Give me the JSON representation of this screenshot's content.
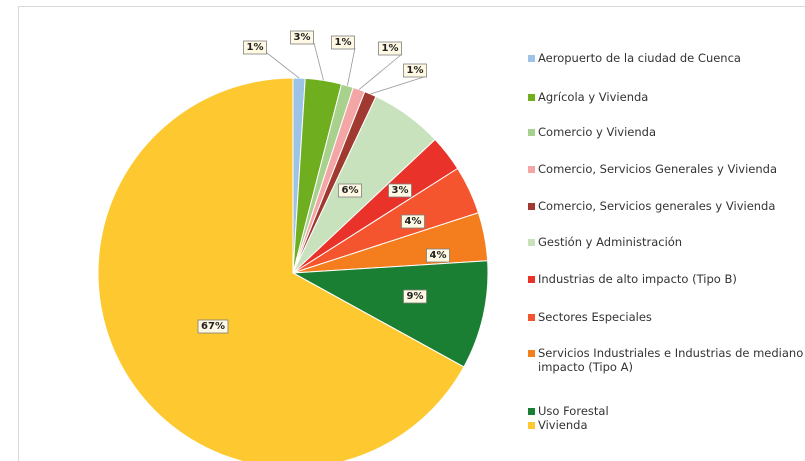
{
  "chart_data": {
    "type": "pie",
    "categories": [
      "Aeropuerto de la ciudad de Cuenca",
      "Agrícola y Vivienda",
      "Comercio y Vivienda",
      "Comercio, Servicios Generales y Vivienda",
      "Comercio, Servicios generales y Vivienda",
      "Gestión y Administración",
      "Industrias de alto impacto (Tipo B)",
      "Sectores Especiales",
      "Servicios Industriales e Industrias de mediano impacto (Tipo A)",
      "Uso Forestal",
      "Vivienda"
    ],
    "values": [
      1,
      3,
      1,
      1,
      1,
      6,
      3,
      4,
      4,
      9,
      67
    ],
    "value_labels": [
      "1%",
      "3%",
      "1%",
      "1%",
      "1%",
      "6%",
      "3%",
      "4%",
      "4%",
      "9%",
      "67%"
    ],
    "colors": [
      "#9dc3e6",
      "#6fae1f",
      "#a9d18e",
      "#f4a6a6",
      "#a0392f",
      "#c8e2bd",
      "#e8322a",
      "#f4552e",
      "#f47d1e",
      "#1b7f33",
      "#fdc830"
    ]
  }
}
